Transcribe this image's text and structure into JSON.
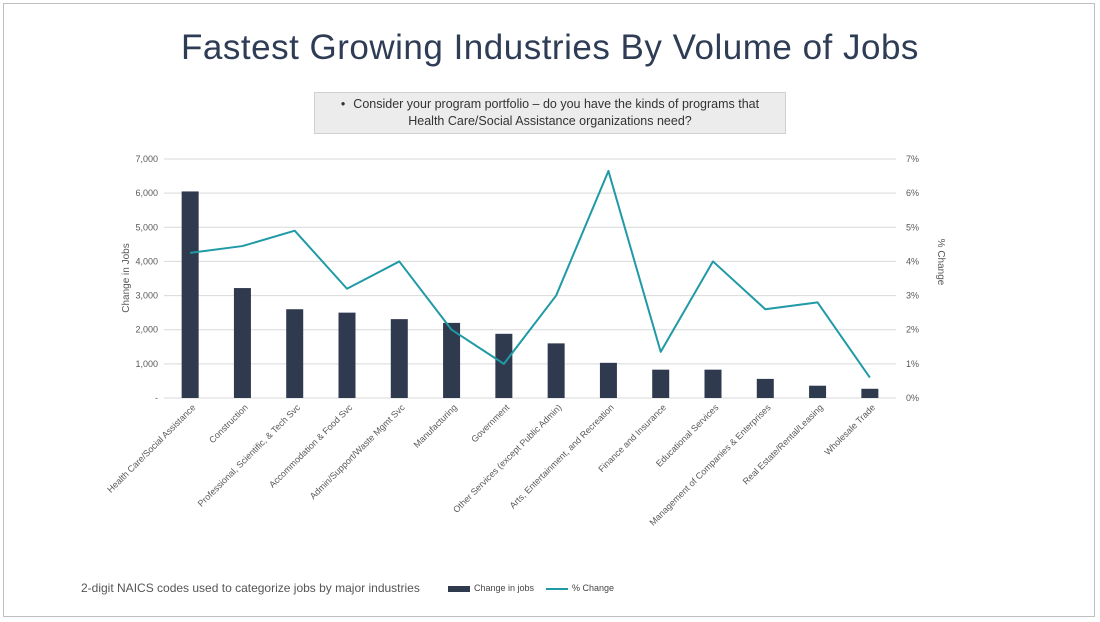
{
  "slide": {
    "title": "Fastest Growing Industries By Volume of Jobs",
    "callout_bullet": "•",
    "callout_line1": "Consider your program portfolio – do you have the kinds of programs that",
    "callout_line2": "Health Care/Social Assistance organizations need?",
    "footnote": "2-digit NAICS codes used to categorize jobs by major industries"
  },
  "colors": {
    "bar": "#2f3a4e",
    "line": "#1f9aa6",
    "grid": "#d9d9d9",
    "axis_text": "#595959",
    "title": "#2e3d55"
  },
  "chart_data": {
    "type": "bar",
    "combo": "bar + line (secondary axis)",
    "categories": [
      "Health Care/Social Assistance",
      "Construction",
      "Professional, Scientific, & Tech Svc",
      "Accommodation & Food Svc",
      "Admin/Support/Waste Mgmt Svc",
      "Manufacturing",
      "Government",
      "Other Services (except Public Admin)",
      "Arts, Entertainment, and Recreation",
      "Finance and Insurance",
      "Educational Services",
      "Management of Companies & Enterprises",
      "Real Estate/Rental/Leasing",
      "Wholesale Trade"
    ],
    "series": [
      {
        "name": "Change in jobs",
        "type": "bar",
        "axis": "left",
        "values": [
          6050,
          3220,
          2600,
          2500,
          2310,
          2200,
          1880,
          1600,
          1030,
          830,
          830,
          560,
          360,
          270
        ]
      },
      {
        "name": "% Change",
        "type": "line",
        "axis": "right",
        "values": [
          4.25,
          4.45,
          4.9,
          3.2,
          4.0,
          2.0,
          1.0,
          3.0,
          6.65,
          1.35,
          4.0,
          2.6,
          2.8,
          0.6
        ]
      }
    ],
    "ylabel": "Change in Jobs",
    "y2label": "% Change",
    "ylim": [
      0,
      7000
    ],
    "y2lim": [
      0,
      7
    ],
    "yticks": [
      "-",
      "1,000",
      "2,000",
      "3,000",
      "4,000",
      "5,000",
      "6,000",
      "7,000"
    ],
    "y2ticks": [
      "0%",
      "1%",
      "2%",
      "3%",
      "4%",
      "5%",
      "6%",
      "7%"
    ],
    "grid": true,
    "legend_position": "bottom"
  }
}
